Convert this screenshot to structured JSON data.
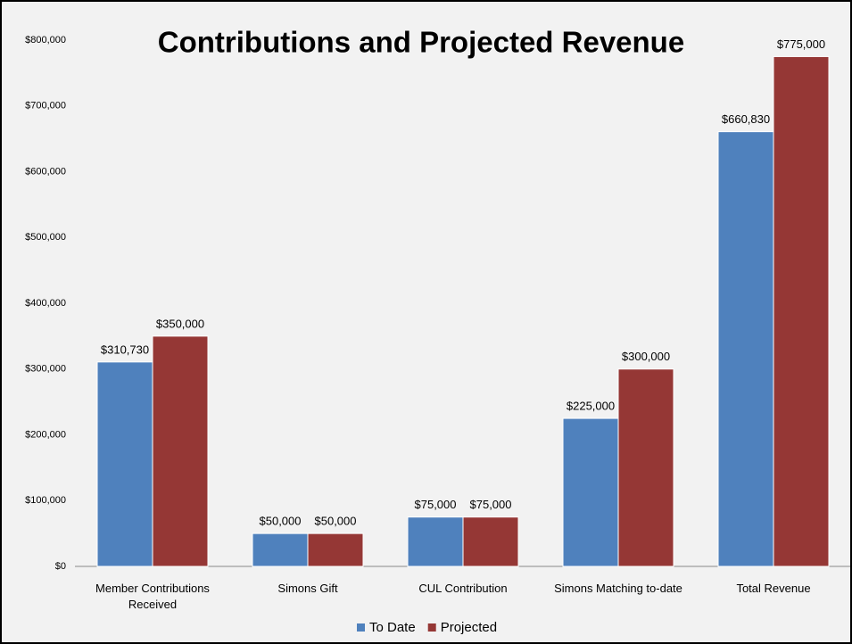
{
  "chart_data": {
    "type": "bar",
    "title": "Contributions and Projected Revenue",
    "categories": [
      "Member Contributions Received",
      "Simons Gift",
      "CUL Contribution",
      "Simons Matching to-date",
      "Total Revenue"
    ],
    "series": [
      {
        "name": "To Date",
        "color": "#4f81bd",
        "values": [
          310730,
          50000,
          75000,
          225000,
          660830
        ],
        "value_labels": [
          "$310,730",
          "$50,000",
          "$75,000",
          "$225,000",
          "$660,830"
        ]
      },
      {
        "name": "Projected",
        "color": "#953735",
        "values": [
          350000,
          50000,
          75000,
          300000,
          775000
        ],
        "value_labels": [
          "$350,000",
          "$50,000",
          "$75,000",
          "$300,000",
          "$775,000"
        ]
      }
    ],
    "ylim": [
      0,
      800000
    ],
    "yticks": [
      {
        "value": 0,
        "label": "$0"
      },
      {
        "value": 100000,
        "label": "$100,000"
      },
      {
        "value": 200000,
        "label": "$200,000"
      },
      {
        "value": 300000,
        "label": "$300,000"
      },
      {
        "value": 400000,
        "label": "$400,000"
      },
      {
        "value": 500000,
        "label": "$500,000"
      },
      {
        "value": 600000,
        "label": "$600,000"
      },
      {
        "value": 700000,
        "label": "$700,000"
      },
      {
        "value": 800000,
        "label": "$800,000"
      }
    ],
    "grid": false,
    "legend": "bottom"
  }
}
